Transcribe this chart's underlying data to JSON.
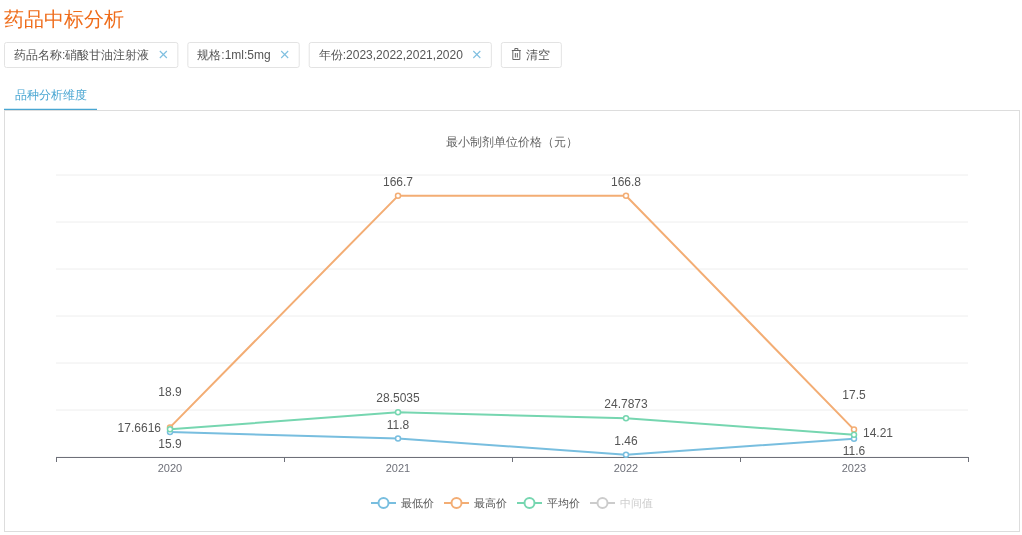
{
  "chart_data": {
    "type": "line",
    "title": "最小制剂单位价格（元）",
    "annotations": [
      "药品中标分析",
      "药品名称:硝酸甘油注射液",
      "规格:1ml:5mg",
      "年份:2023,2022,2021,2020",
      "清空",
      "品种分析维度"
    ],
    "categories": [
      "2020",
      "2021",
      "2022",
      "2023"
    ],
    "series": [
      {
        "name": "最低价",
        "color": "#78bedf",
        "values": [
          15.9,
          11.8,
          1.46,
          11.6
        ]
      },
      {
        "name": "最高价",
        "color": "#f3ad74",
        "values": [
          18.9,
          166.7,
          166.8,
          17.5
        ]
      },
      {
        "name": "平均价",
        "color": "#76d6b0",
        "values": [
          17.6616,
          28.5035,
          24.7873,
          14.21
        ]
      },
      {
        "name": "中间值",
        "color": "#cccccc",
        "values": [
          null,
          null,
          null,
          null
        ]
      }
    ],
    "ylim": [
      0,
      180
    ],
    "yticks": [
      0,
      30,
      60,
      90,
      120,
      150,
      180
    ],
    "tick_labels": "x",
    "grid": "y",
    "legend": "bottom",
    "marker": "circle",
    "line_style": "solid",
    "data_labels": true
  }
}
